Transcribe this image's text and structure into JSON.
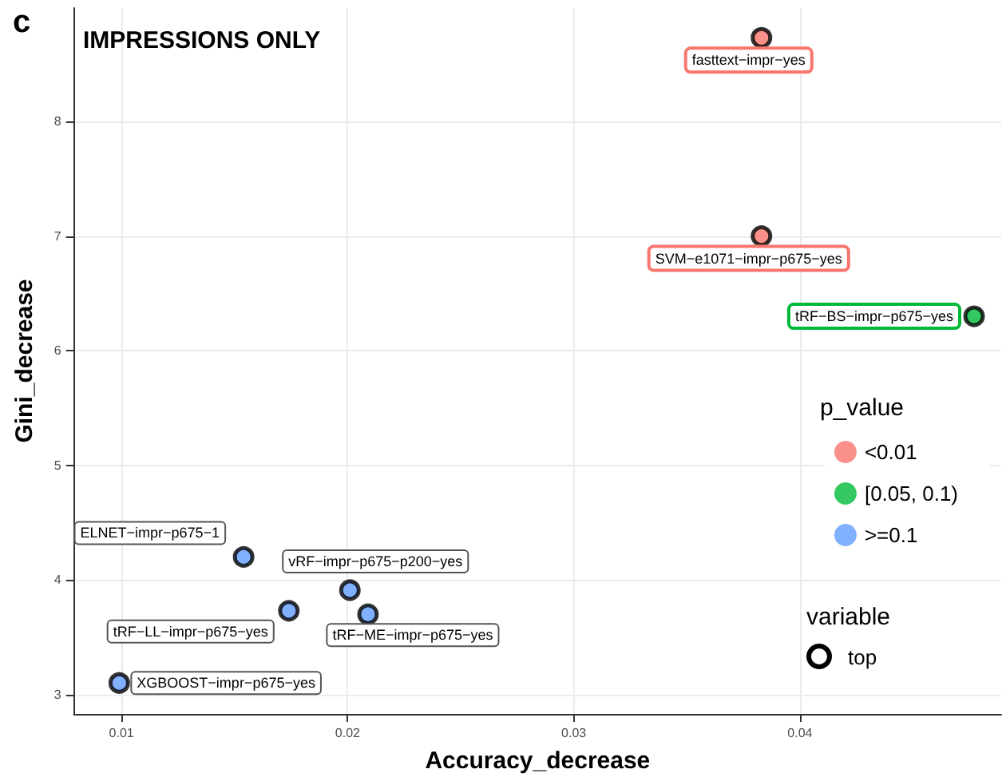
{
  "chart_data": {
    "type": "scatter",
    "title": "IMPRESSIONS ONLY",
    "xlabel": "Accuracy_decrease",
    "ylabel": "Gini_decrease",
    "legend_title": "p_value",
    "xlim": [
      0.0079,
      0.0489
    ],
    "ylim": [
      2.83,
      8.99
    ],
    "xticks": [
      0.01,
      0.02,
      0.03,
      0.04
    ],
    "yticks": [
      3,
      4,
      5,
      6,
      7,
      8
    ],
    "grid": true,
    "legend": "right",
    "marker": "circle",
    "series": [
      {
        "name": "<0.01",
        "color": "#f8766d",
        "x": [
          0.0383,
          0.0383
        ],
        "values": [
          8.73,
          7.0
        ]
      },
      {
        "name": "[0.05, 0.1)",
        "color": "#00ba38",
        "x": [
          0.0477
        ],
        "values": [
          6.3
        ]
      },
      {
        "name": ">=0.1",
        "color": "#619cff",
        "x": [
          0.0154,
          0.0201,
          0.0174,
          0.0209,
          0.0099
        ],
        "values": [
          4.2,
          3.91,
          3.73,
          3.7,
          3.1
        ]
      }
    ],
    "annotations": [
      "c",
      "variable",
      "top",
      {
        "text": "fasttext−impr−yes",
        "x": 0.0383,
        "y": 8.73
      },
      {
        "text": "SVM−e1071−impr−p675−yes",
        "x": 0.0383,
        "y": 7.0
      },
      {
        "text": "tRF−BS−impr−p675−yes",
        "x": 0.0477,
        "y": 6.3
      },
      {
        "text": "ELNET−impr−p675−1",
        "x": 0.0154,
        "y": 4.2
      },
      {
        "text": "vRF−impr−p675−p200−yes",
        "x": 0.0201,
        "y": 3.91
      },
      {
        "text": "tRF−LL−impr−p675−yes",
        "x": 0.0174,
        "y": 3.73
      },
      {
        "text": "tRF−ME−impr−p675−yes",
        "x": 0.0209,
        "y": 3.7
      },
      {
        "text": "XGBOOST−impr−p675−yes",
        "x": 0.0099,
        "y": 3.1
      }
    ]
  }
}
